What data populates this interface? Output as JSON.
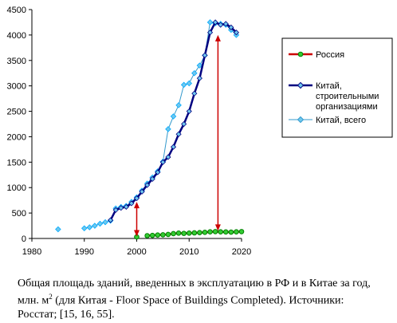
{
  "chart_data": {
    "type": "line",
    "xlim": [
      1980,
      2020
    ],
    "ylim": [
      0,
      4500
    ],
    "x_ticks": [
      1980,
      1990,
      2000,
      2010,
      2020
    ],
    "y_ticks": [
      0,
      500,
      1000,
      1500,
      2000,
      2500,
      3000,
      3500,
      4000,
      4500
    ],
    "grid": false,
    "legend_position": "right",
    "series": [
      {
        "name": "Россия",
        "color": "#008000",
        "marker_color": "#33cc33",
        "line_color": "#cc0000",
        "points": [
          [
            2000,
            30
          ],
          [
            2002,
            55
          ],
          [
            2003,
            60
          ],
          [
            2004,
            68
          ],
          [
            2005,
            72
          ],
          [
            2006,
            80
          ],
          [
            2007,
            95
          ],
          [
            2008,
            105
          ],
          [
            2009,
            100
          ],
          [
            2010,
            105
          ],
          [
            2011,
            110
          ],
          [
            2012,
            115
          ],
          [
            2013,
            120
          ],
          [
            2014,
            130
          ],
          [
            2015,
            135
          ],
          [
            2016,
            130
          ],
          [
            2017,
            128
          ],
          [
            2018,
            125
          ],
          [
            2019,
            130
          ],
          [
            2020,
            135
          ]
        ]
      },
      {
        "name": "Китай, строительными организациями",
        "color": "#000080",
        "marker_color": "#6fc8ee",
        "line_color": "#000080",
        "points": [
          [
            1995,
            360
          ],
          [
            1996,
            560
          ],
          [
            1997,
            600
          ],
          [
            1998,
            620
          ],
          [
            1999,
            690
          ],
          [
            2000,
            790
          ],
          [
            2001,
            920
          ],
          [
            2002,
            1050
          ],
          [
            2003,
            1170
          ],
          [
            2004,
            1300
          ],
          [
            2005,
            1500
          ],
          [
            2006,
            1600
          ],
          [
            2007,
            1800
          ],
          [
            2008,
            2050
          ],
          [
            2009,
            2250
          ],
          [
            2010,
            2500
          ],
          [
            2011,
            2850
          ],
          [
            2012,
            3150
          ],
          [
            2013,
            3600
          ],
          [
            2014,
            4050
          ],
          [
            2015,
            4250
          ],
          [
            2016,
            4200
          ],
          [
            2017,
            4220
          ],
          [
            2018,
            4150
          ],
          [
            2019,
            4050
          ]
        ]
      },
      {
        "name": "Китай, всего",
        "color": "#00aaff",
        "marker_color": "#6fc8ee",
        "line_color": "#3399cc",
        "points": [
          [
            1985,
            180
          ],
          [
            1990,
            200
          ],
          [
            1991,
            220
          ],
          [
            1992,
            250
          ],
          [
            1993,
            290
          ],
          [
            1994,
            320
          ],
          [
            1995,
            350
          ],
          [
            1996,
            590
          ],
          [
            1997,
            620
          ],
          [
            1998,
            640
          ],
          [
            1999,
            720
          ],
          [
            2000,
            810
          ],
          [
            2001,
            940
          ],
          [
            2002,
            1080
          ],
          [
            2003,
            1200
          ],
          [
            2004,
            1320
          ],
          [
            2005,
            1510
          ],
          [
            2006,
            2150
          ],
          [
            2007,
            2400
          ],
          [
            2008,
            2620
          ],
          [
            2009,
            3020
          ],
          [
            2010,
            3050
          ],
          [
            2011,
            3250
          ],
          [
            2012,
            3400
          ],
          [
            2013,
            3600
          ],
          [
            2014,
            4250
          ],
          [
            2015,
            4230
          ],
          [
            2016,
            4220
          ],
          [
            2017,
            4200
          ],
          [
            2018,
            4100
          ],
          [
            2019,
            4000
          ]
        ]
      }
    ],
    "annotations": [
      {
        "type": "double-arrow",
        "color": "#cc0000",
        "x": 2000,
        "y_from": 40,
        "y_to": 720
      },
      {
        "type": "double-arrow",
        "color": "#cc0000",
        "x": 2015.5,
        "y_from": 150,
        "y_to": 4000
      }
    ]
  },
  "legend": {
    "items": [
      {
        "label_lines": [
          "Россия"
        ]
      },
      {
        "label_lines": [
          "Китай,",
          "строительными",
          "организациями"
        ]
      },
      {
        "label_lines": [
          "Китай, всего"
        ]
      }
    ]
  },
  "caption": {
    "line1": "Общая площадь зданий, введенных в эксплуатацию в РФ и в Китае за год,",
    "line2_pre": "млн. м",
    "line2_sup": "2",
    "line2_post": " (для Китая - Floor Space of Buildings Completed). Источники:",
    "line3": "Росстат; [15, 16, 55]."
  }
}
